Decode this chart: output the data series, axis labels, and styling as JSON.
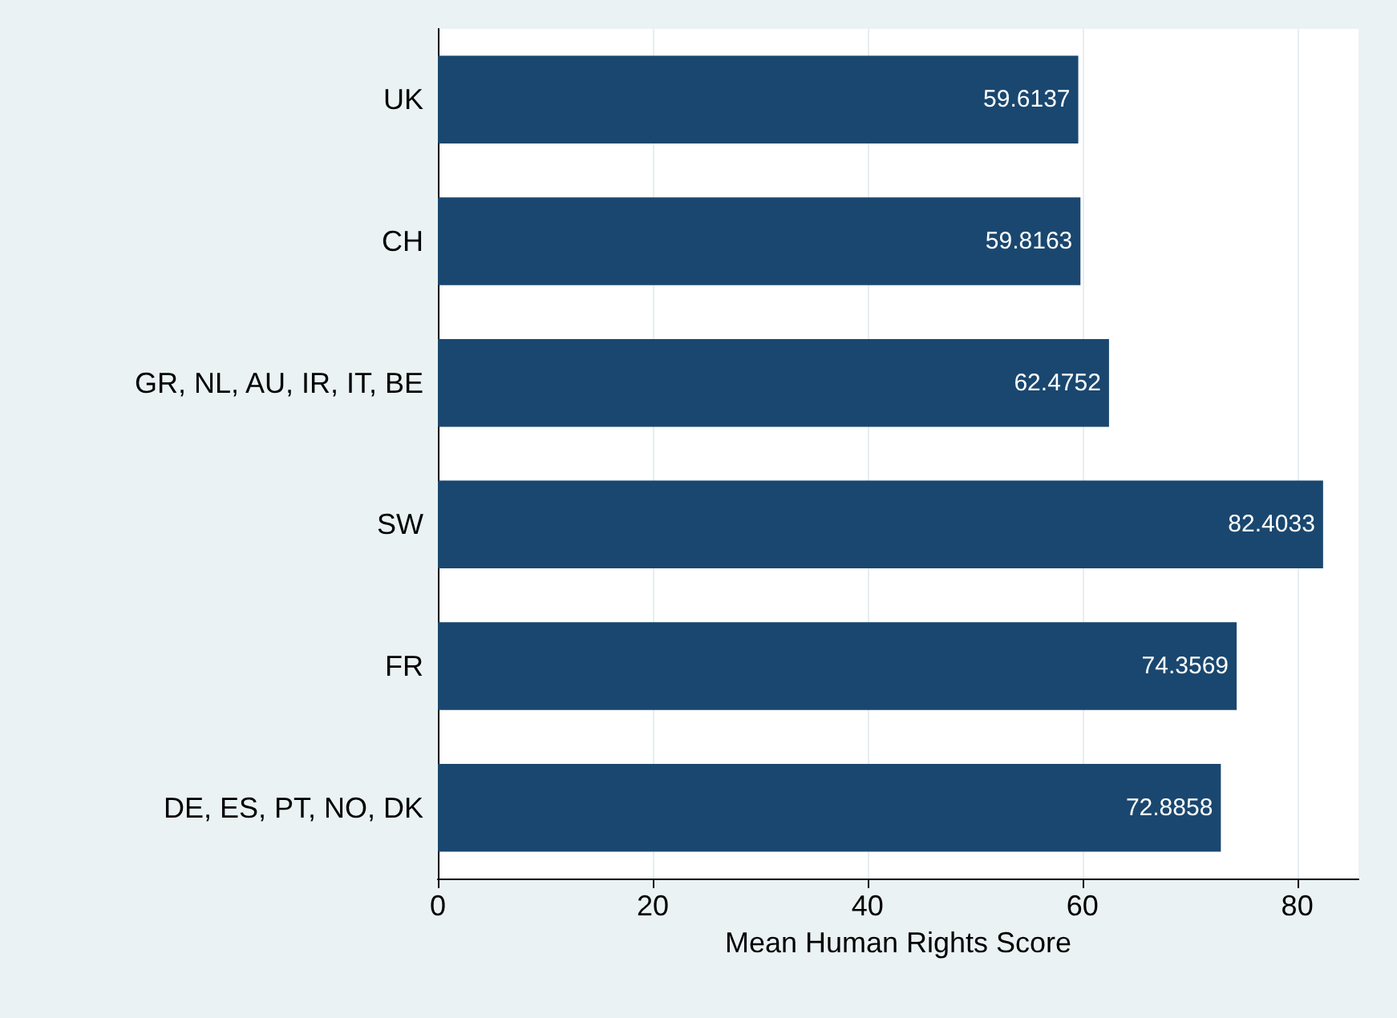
{
  "chart_data": {
    "type": "bar",
    "orientation": "horizontal",
    "xlabel": "Mean Human Rights Score",
    "categories": [
      "UK",
      "CH",
      "GR, NL, AU, IR, IT, BE",
      "SW",
      "FR",
      "DE, ES, PT, NO, DK"
    ],
    "values": [
      59.6137,
      59.8163,
      62.4752,
      82.4033,
      74.3569,
      72.8858
    ],
    "color": "#1a476f",
    "data_labels": true,
    "xlim": [
      0,
      85.7
    ],
    "xticks": [
      0,
      20,
      40,
      60,
      80
    ],
    "grid": "x"
  }
}
